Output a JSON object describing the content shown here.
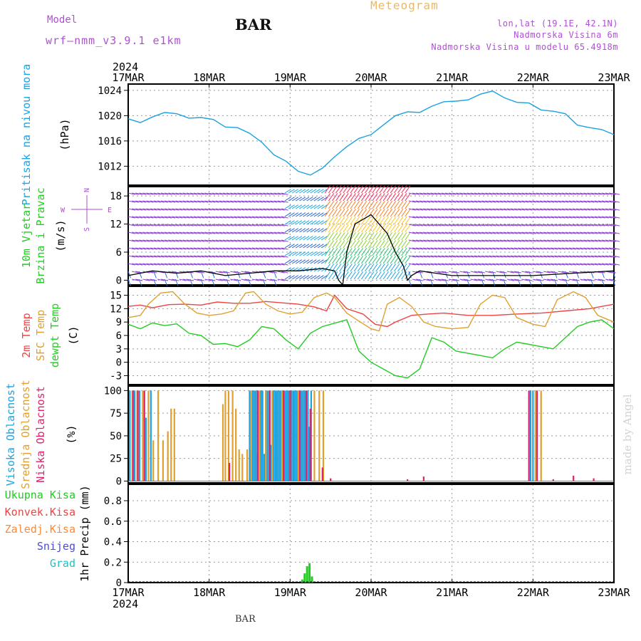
{
  "header": {
    "model_label": "Model",
    "model_name": "wrf—nmm_v3.9.1  e1km",
    "station": "BAR",
    "title": "Meteogram",
    "info_lines": [
      "lon,lat (19.1E, 42.1N)",
      "Nadmorska Visina 6m",
      "Nadmorska Visina u modelu 65.4918m"
    ]
  },
  "footer": {
    "station": "BAR"
  },
  "watermark": "made by Angel",
  "colors": {
    "pressure": "#1aa3e0",
    "temp2m": "#ee4444",
    "sfc": "#e0a030",
    "dewpt": "#22cc22",
    "purple": "#b04fd6",
    "grid": "#999999"
  },
  "chart_data": [
    {
      "type": "line",
      "panel": "pressure",
      "ylabel": [
        "Pritisak na nivou mora",
        "(hPa)"
      ],
      "yticks": [
        1012,
        1016,
        1020,
        1024
      ],
      "ylim": [
        1009,
        1025
      ],
      "xlim": [
        0,
        6
      ],
      "x_tick_labels": [
        "17MAR",
        "18MAR",
        "19MAR",
        "20MAR",
        "21MAR",
        "22MAR",
        "23MAR"
      ],
      "x_year": "2024",
      "grid": true,
      "series": [
        {
          "color": "#1aa3e0",
          "x": [
            0,
            0.15,
            0.3,
            0.45,
            0.6,
            0.75,
            0.9,
            1.05,
            1.2,
            1.35,
            1.5,
            1.65,
            1.8,
            1.95,
            2.1,
            2.25,
            2.4,
            2.55,
            2.7,
            2.85,
            3.0,
            3.15,
            3.3,
            3.45,
            3.6,
            3.75,
            3.9,
            4.05,
            4.2,
            4.35,
            4.5,
            4.65,
            4.8,
            4.95,
            5.1,
            5.25,
            5.4,
            5.55,
            5.7,
            5.85,
            6.0
          ],
          "y": [
            1019.5,
            1018.9,
            1019.8,
            1020.5,
            1020.3,
            1019.6,
            1019.7,
            1019.4,
            1018.2,
            1018.1,
            1017.2,
            1015.8,
            1013.8,
            1012.8,
            1011.2,
            1010.6,
            1011.7,
            1013.5,
            1015.1,
            1016.4,
            1017.0,
            1018.5,
            1020.0,
            1020.6,
            1020.5,
            1021.5,
            1022.2,
            1022.3,
            1022.5,
            1023.4,
            1023.9,
            1022.8,
            1022.1,
            1022.0,
            1020.9,
            1020.7,
            1020.3,
            1018.5,
            1018.1,
            1017.8,
            1017.0
          ]
        }
      ]
    },
    {
      "type": "vector",
      "panel": "wind",
      "ylabel": [
        "10m Vjetar",
        "Brzina i Pravac",
        "(m/s)"
      ],
      "yticks": [
        0,
        6,
        12,
        18
      ],
      "ylim": [
        -1,
        20
      ],
      "compass": {
        "north": "N",
        "south": "S",
        "west": "W",
        "east": "E"
      },
      "speed_x": [
        0,
        0.3,
        0.6,
        0.9,
        1.2,
        1.5,
        1.8,
        2.1,
        2.4,
        2.55,
        2.6,
        2.65,
        2.7,
        2.8,
        3.0,
        3.2,
        3.3,
        3.4,
        3.45,
        3.5,
        3.6,
        3.8,
        4.0,
        4.5,
        5.0,
        5.5,
        6.0
      ],
      "speed_y": [
        1,
        2,
        1.5,
        2,
        1,
        1.5,
        2,
        2,
        2.5,
        2,
        0,
        -1,
        6,
        12,
        14,
        10,
        6,
        3,
        0,
        1,
        2,
        1.5,
        1,
        1,
        1,
        1.5,
        2
      ]
    },
    {
      "type": "line",
      "panel": "temperature",
      "ylabel_series": [
        "2m Temp",
        "SFC Temp",
        "dewpt Temp"
      ],
      "ylabel_unit": "(C)",
      "yticks": [
        -3,
        0,
        3,
        6,
        9,
        12,
        15
      ],
      "ylim": [
        -5,
        17
      ],
      "series": [
        {
          "name": "2m Temp",
          "color": "#ee4444",
          "x": [
            0,
            0.15,
            0.3,
            0.5,
            0.7,
            0.9,
            1.1,
            1.3,
            1.5,
            1.7,
            1.9,
            2.1,
            2.3,
            2.45,
            2.55,
            2.7,
            2.9,
            3.05,
            3.2,
            3.3,
            3.5,
            3.7,
            3.9,
            4.2,
            4.5,
            4.8,
            5.1,
            5.4,
            5.7,
            6.0
          ],
          "y": [
            12.5,
            12.8,
            12.2,
            12.9,
            13.0,
            12.8,
            13.5,
            13.2,
            13.2,
            13.6,
            13.3,
            13.0,
            12.4,
            11.5,
            15.0,
            12.0,
            10.8,
            8.5,
            8.0,
            9.0,
            10.5,
            10.8,
            11.0,
            10.5,
            10.5,
            10.8,
            11.0,
            11.5,
            12.0,
            13.0
          ]
        },
        {
          "name": "SFC Temp",
          "color": "#e0a030",
          "x": [
            0,
            0.15,
            0.25,
            0.4,
            0.55,
            0.7,
            0.85,
            1.0,
            1.15,
            1.3,
            1.45,
            1.55,
            1.7,
            1.85,
            2.0,
            2.15,
            2.3,
            2.45,
            2.55,
            2.7,
            2.85,
            3.0,
            3.1,
            3.2,
            3.35,
            3.5,
            3.65,
            3.8,
            4.0,
            4.2,
            4.35,
            4.5,
            4.65,
            4.8,
            5.0,
            5.15,
            5.3,
            5.5,
            5.65,
            5.8,
            6.0
          ],
          "y": [
            10,
            10.5,
            13,
            15.5,
            15.8,
            13,
            11,
            10.5,
            10.8,
            11.5,
            15.5,
            15.8,
            13,
            11.5,
            10.8,
            11.2,
            14.5,
            15.5,
            14.5,
            11.0,
            9.2,
            7.5,
            7.0,
            13.0,
            14.5,
            12.5,
            9.0,
            8.0,
            7.5,
            7.8,
            13.0,
            15.0,
            14.5,
            10.0,
            8.5,
            8.0,
            14.0,
            15.8,
            14.5,
            10.5,
            9.0
          ]
        },
        {
          "name": "dewpt Temp",
          "color": "#22cc22",
          "x": [
            0,
            0.15,
            0.3,
            0.45,
            0.6,
            0.75,
            0.9,
            1.05,
            1.2,
            1.35,
            1.5,
            1.65,
            1.8,
            1.95,
            2.1,
            2.25,
            2.4,
            2.5,
            2.7,
            2.85,
            3.0,
            3.15,
            3.3,
            3.45,
            3.6,
            3.75,
            3.9,
            4.05,
            4.2,
            4.35,
            4.5,
            4.65,
            4.8,
            4.95,
            5.1,
            5.25,
            5.4,
            5.55,
            5.7,
            5.85,
            6.0
          ],
          "y": [
            8.5,
            7.5,
            8.8,
            8.2,
            8.6,
            6.5,
            6.0,
            4.0,
            4.2,
            3.5,
            5.0,
            8.0,
            7.5,
            5.0,
            3.0,
            6.5,
            8.0,
            8.5,
            9.5,
            2.5,
            0,
            -1.5,
            -3.0,
            -3.5,
            -1.5,
            5.5,
            4.5,
            2.5,
            2.0,
            1.5,
            1.0,
            3.0,
            4.5,
            4.0,
            3.5,
            3.0,
            5.5,
            8.0,
            9.0,
            9.5,
            7.5
          ]
        }
      ]
    },
    {
      "type": "bar",
      "panel": "clouds",
      "ylabel_series": [
        "Visoka Oblacnost",
        "Srednja Oblacnost",
        "Niska Oblacnost"
      ],
      "ylabel_unit": "(%)",
      "yticks": [
        0,
        25,
        50,
        75,
        100
      ],
      "ylim": [
        -2,
        105
      ],
      "series": [
        {
          "name": "Visoka Oblacnost",
          "color": "#1aa3e0",
          "x": [
            0.02,
            0.08,
            0.14,
            0.22,
            0.28,
            1.5,
            1.52,
            1.54,
            1.56,
            1.58,
            1.6,
            1.62,
            1.64,
            1.66,
            1.68,
            1.7,
            1.72,
            1.74,
            1.76,
            1.78,
            1.8,
            1.82,
            1.84,
            1.86,
            1.88,
            1.9,
            1.92,
            1.94,
            1.96,
            1.98,
            2.0,
            2.02,
            2.04,
            2.06,
            2.08,
            2.1,
            2.12,
            2.14,
            2.16,
            2.18,
            2.2,
            2.22,
            2.24,
            2.26,
            4.97,
            5.0
          ],
          "y": [
            100,
            100,
            100,
            70,
            100,
            100,
            35,
            100,
            100,
            100,
            30,
            100,
            100,
            100,
            30,
            100,
            100,
            100,
            40,
            100,
            100,
            100,
            100,
            100,
            100,
            100,
            100,
            100,
            100,
            100,
            100,
            100,
            100,
            100,
            100,
            100,
            50,
            100,
            100,
            100,
            100,
            100,
            60,
            100,
            100,
            100
          ]
        },
        {
          "name": "Srednja Oblacnost",
          "color": "#e0a030",
          "x": [
            0.05,
            0.11,
            0.18,
            0.25,
            0.31,
            0.37,
            0.43,
            0.49,
            0.53,
            0.57,
            1.17,
            1.2,
            1.24,
            1.29,
            1.33,
            1.37,
            1.41,
            1.47,
            1.52,
            1.62,
            1.7,
            1.78,
            1.9,
            2.0,
            2.1,
            2.2,
            2.3,
            2.36,
            2.41,
            5.03,
            5.1
          ],
          "y": [
            100,
            100,
            100,
            100,
            45,
            100,
            45,
            55,
            80,
            80,
            85,
            100,
            100,
            100,
            80,
            35,
            30,
            35,
            100,
            100,
            100,
            100,
            100,
            100,
            100,
            100,
            100,
            100,
            100,
            100,
            100
          ]
        },
        {
          "name": "Niska Oblacnost",
          "color": "#e0206c",
          "x": [
            0.06,
            0.12,
            0.2,
            1.25,
            1.6,
            1.75,
            1.92,
            2.0,
            2.12,
            2.2,
            2.25,
            2.4,
            2.5,
            3.45,
            3.65,
            4.95,
            5.05,
            5.25,
            5.5,
            5.75
          ],
          "y": [
            100,
            100,
            100,
            20,
            100,
            100,
            100,
            100,
            100,
            100,
            80,
            15,
            3,
            2,
            5,
            100,
            100,
            2,
            6,
            3
          ]
        }
      ]
    },
    {
      "type": "bar",
      "panel": "precip",
      "ylabel_series": [
        "Ukupna Kisa",
        "Konvek.Kisa",
        "Zaledj.Kisa",
        "Snijeg",
        "Grad"
      ],
      "ylabel_unit": "1hr Precip (mm)",
      "yticks": [
        0,
        0.2,
        0.4,
        0.6,
        0.8
      ],
      "ylim": [
        0,
        0.96
      ],
      "series": [
        {
          "name": "Ukupna Kisa",
          "color": "#22cc22",
          "x": [
            2.15,
            2.18,
            2.21,
            2.24,
            2.27
          ],
          "y": [
            0.03,
            0.09,
            0.16,
            0.19,
            0.06
          ]
        }
      ]
    }
  ]
}
